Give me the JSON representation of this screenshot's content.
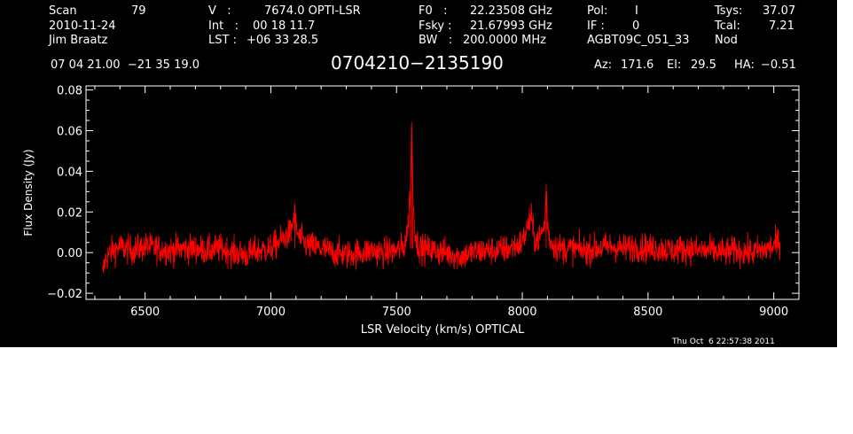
{
  "header": {
    "scan_label": "Scan",
    "scan_value": "79",
    "date": "2010-11-24",
    "observer": "Jim Braatz",
    "v_label": "V   :",
    "v_value": "7674.0 OPTI-LSR",
    "int_label": "Int   :",
    "int_value": "00 18 11.7",
    "lst_label": "LST :",
    "lst_value": "+06 33 28.5",
    "f0_label": "F0   :",
    "f0_value": "22.23508 GHz",
    "fsky_label": "Fsky :",
    "fsky_value": "21.67993 GHz",
    "bw_label": "BW   :",
    "bw_value": "200.0000 MHz",
    "pol_label": "Pol:",
    "pol_value": "I",
    "if_label": "IF :",
    "if_value": "0",
    "project": "AGBT09C_051_33",
    "tsys_label": "Tsys:",
    "tsys_value": "37.07",
    "tcal_label": "Tcal:",
    "tcal_value": "7.21",
    "mode": "Nod",
    "coords": "07 04 21.00  −21 35 19.0",
    "source": "0704210−2135190",
    "az_label": "Az:",
    "az_value": "171.6",
    "el_label": "El:",
    "el_value": "29.5",
    "ha_label": "HA:",
    "ha_value": "−0.51"
  },
  "timestamp": "Thu Oct  6 22:57:38 2011",
  "chart_data": {
    "type": "line",
    "title": "0704210−2135190",
    "xlabel": "LSR Velocity (km/s) OPTICAL",
    "ylabel": "Flux Density (Jy)",
    "xlim": [
      6265,
      9100
    ],
    "ylim": [
      -0.023,
      0.082
    ],
    "x_ticks": [
      6500,
      7000,
      7500,
      8000,
      8500,
      9000
    ],
    "y_ticks": [
      -0.02,
      0.0,
      0.02,
      0.04,
      0.06,
      0.08
    ],
    "y_tick_labels": [
      "−0.02",
      "0.00",
      "0.02",
      "0.04",
      "0.06",
      "0.08"
    ],
    "grid": false,
    "colors": {
      "background": "#000000",
      "axes": "#ffffff",
      "series": "#ff0000"
    },
    "series": [
      {
        "x": [
          6330,
          6340,
          6360,
          6400,
          6450,
          6500,
          6550,
          6600,
          6650,
          6700,
          6750,
          6800,
          6850,
          6900,
          6950,
          7000,
          7020,
          7040,
          7060,
          7080,
          7095,
          7100,
          7110,
          7130,
          7160,
          7200,
          7250,
          7300,
          7350,
          7400,
          7450,
          7500,
          7530,
          7545,
          7555,
          7560,
          7565,
          7570,
          7580,
          7600,
          7650,
          7700,
          7750,
          7800,
          7850,
          7900,
          7950,
          8000,
          8020,
          8035,
          8045,
          8060,
          8080,
          8090,
          8095,
          8100,
          8110,
          8130,
          8160,
          8200,
          8250,
          8300,
          8350,
          8400,
          8450,
          8500,
          8550,
          8600,
          8650,
          8700,
          8750,
          8800,
          8850,
          8900,
          8950,
          9000,
          9025
        ],
        "y": [
          -0.012,
          -0.004,
          0.0,
          0.003,
          0.001,
          0.003,
          0.002,
          0.001,
          0.002,
          0.002,
          0.001,
          0.002,
          0.0,
          -0.001,
          0.001,
          0.002,
          0.004,
          0.006,
          0.008,
          0.01,
          0.02,
          0.012,
          0.008,
          0.005,
          0.003,
          0.002,
          0.0,
          -0.001,
          0.0,
          0.001,
          0.0,
          0.001,
          0.003,
          0.012,
          0.032,
          0.064,
          0.03,
          0.015,
          0.005,
          0.002,
          0.001,
          0.0,
          -0.002,
          0.0,
          0.001,
          0.001,
          0.002,
          0.005,
          0.012,
          0.018,
          0.008,
          0.006,
          0.01,
          0.015,
          0.034,
          0.014,
          0.006,
          0.003,
          0.002,
          0.002,
          0.001,
          0.002,
          0.003,
          0.002,
          0.003,
          0.002,
          0.002,
          0.001,
          0.002,
          0.001,
          0.001,
          0.0,
          0.001,
          0.0,
          0.001,
          0.003,
          0.006
        ]
      }
    ]
  }
}
